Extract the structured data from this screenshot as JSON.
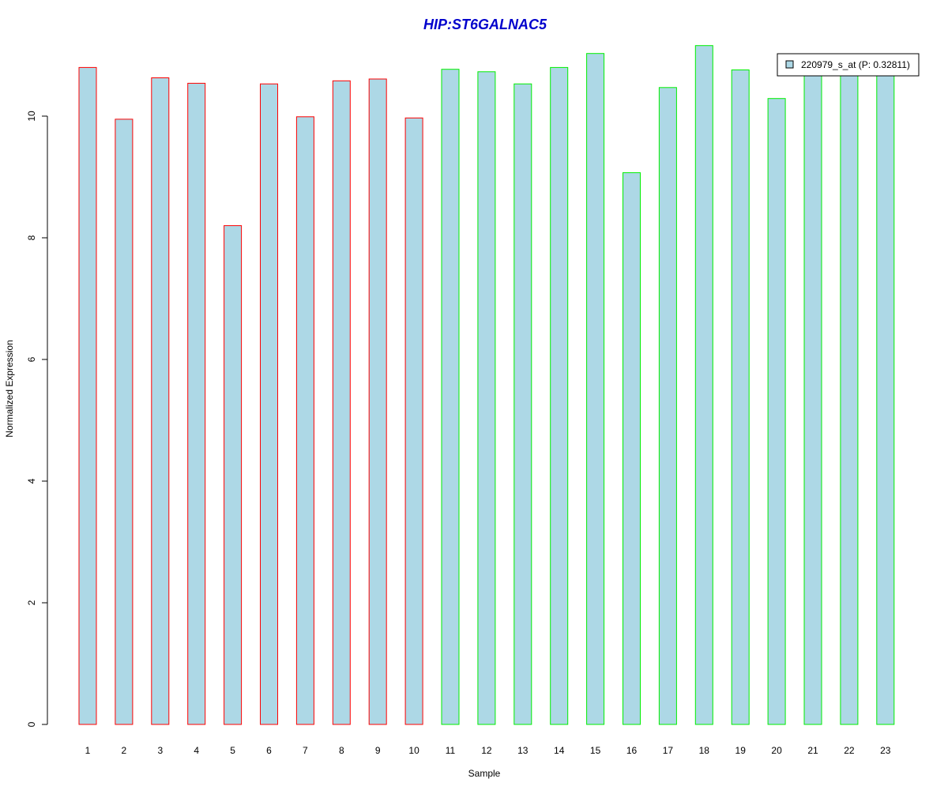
{
  "chart_data": {
    "type": "bar",
    "title": "HIP:ST6GALNAC5",
    "xlabel": "Sample",
    "ylabel": "Normalized Expression",
    "categories": [
      "1",
      "2",
      "3",
      "4",
      "5",
      "6",
      "7",
      "8",
      "9",
      "10",
      "11",
      "12",
      "13",
      "14",
      "15",
      "16",
      "17",
      "18",
      "19",
      "20",
      "21",
      "22",
      "23"
    ],
    "series": [
      {
        "name": "220979_s_at (P: 0.32811)",
        "values": [
          10.8,
          9.95,
          10.63,
          10.54,
          8.2,
          10.53,
          9.99,
          10.58,
          10.61,
          9.97,
          10.77,
          10.73,
          10.53,
          10.8,
          11.03,
          9.07,
          10.47,
          11.16,
          10.76,
          10.29,
          10.7,
          10.7,
          10.7
        ]
      }
    ],
    "group_border_colors": [
      "#ff0000",
      "#ff0000",
      "#ff0000",
      "#ff0000",
      "#ff0000",
      "#ff0000",
      "#ff0000",
      "#ff0000",
      "#ff0000",
      "#ff0000",
      "#00ee00",
      "#00ee00",
      "#00ee00",
      "#00ee00",
      "#00ee00",
      "#00ee00",
      "#00ee00",
      "#00ee00",
      "#00ee00",
      "#00ee00",
      "#00ee00",
      "#00ee00",
      "#00ee00"
    ],
    "bar_fill_color": "#add8e6",
    "title_color": "#0000cc",
    "yticks": [
      "0",
      "2",
      "4",
      "6",
      "8",
      "10"
    ],
    "ylim": [
      0,
      11.2
    ],
    "grid": false,
    "legend_position": "top-right"
  }
}
